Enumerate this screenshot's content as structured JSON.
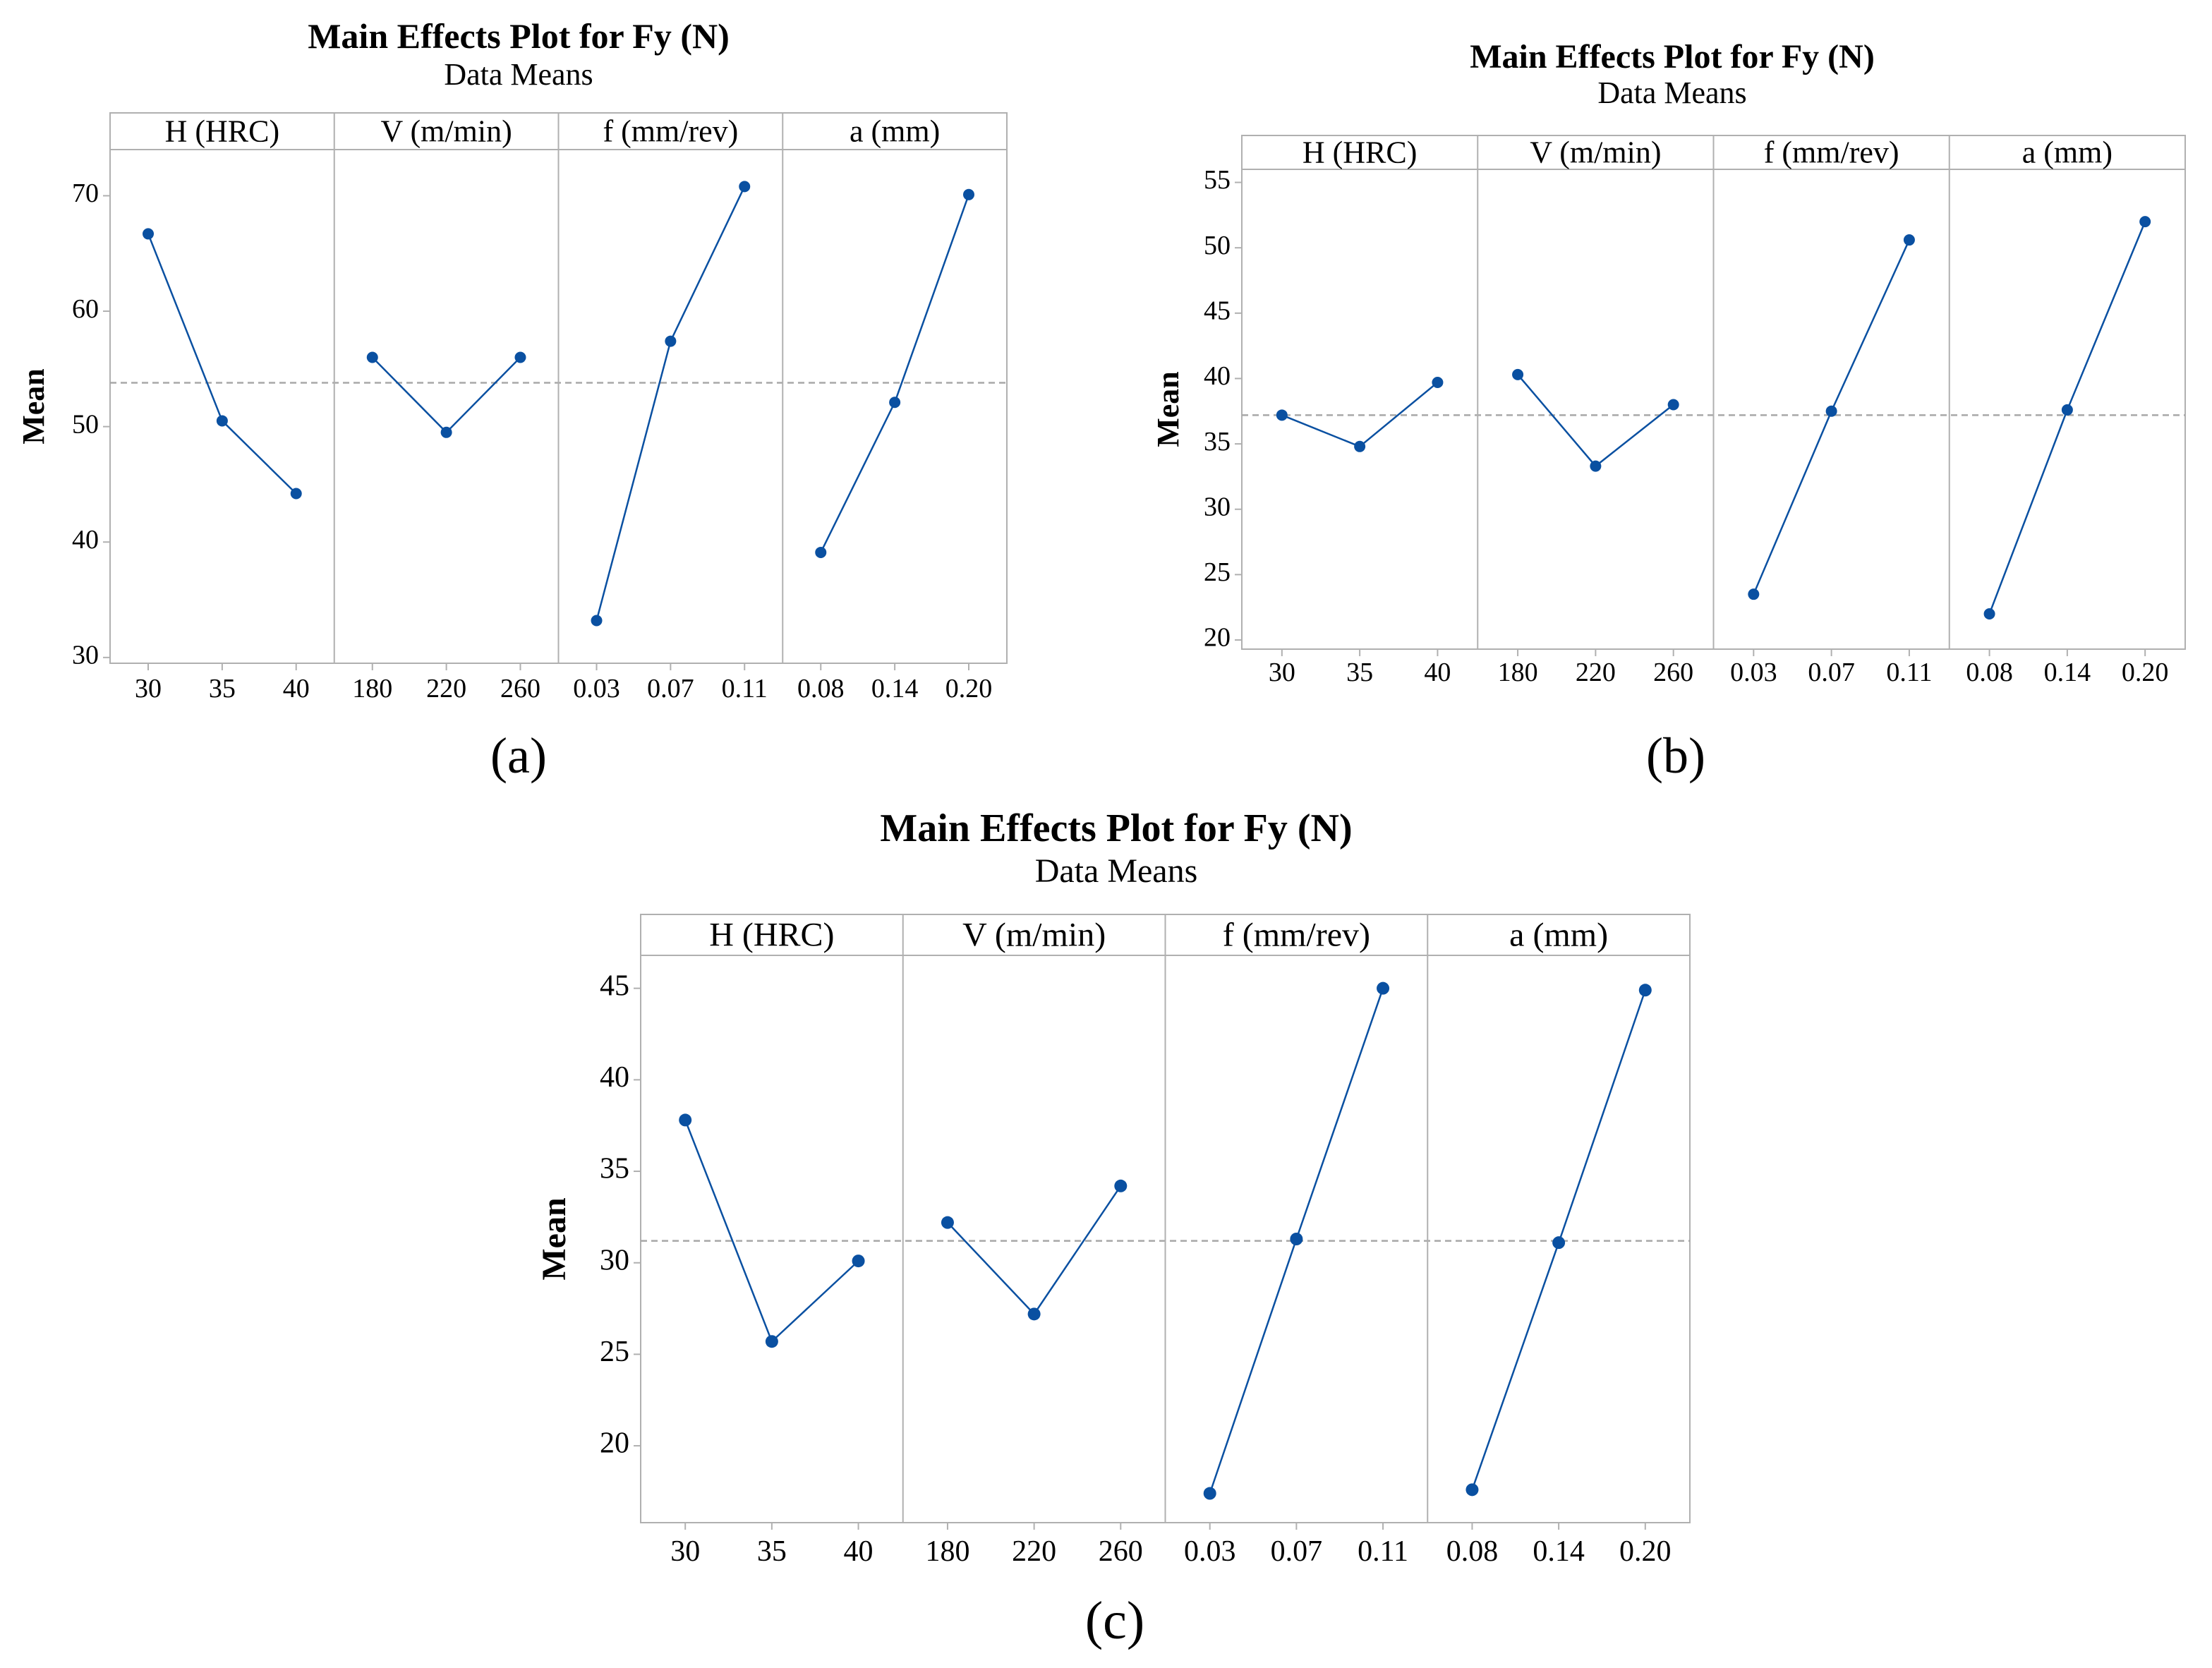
{
  "colors": {
    "series": "#0a50a1",
    "frame": "#b0b0b0",
    "mean_line": "#a8a8a8"
  },
  "chart_data": [
    {
      "id": "a",
      "type": "line",
      "panel_label": "(a)",
      "title": "Main Effects Plot for Fy (N)",
      "subtitle": "Data Means",
      "ylabel": "Mean",
      "ylim": [
        29.5,
        74.0
      ],
      "yticks": [
        30,
        40,
        50,
        60,
        70
      ],
      "grand_mean": 53.8,
      "factors": [
        {
          "name": "H (HRC)",
          "levels": [
            "30",
            "35",
            "40"
          ],
          "values": [
            66.7,
            50.5,
            44.2
          ]
        },
        {
          "name": "V (m/min)",
          "levels": [
            "180",
            "220",
            "260"
          ],
          "values": [
            56.0,
            49.5,
            56.0
          ]
        },
        {
          "name": "f (mm/rev)",
          "levels": [
            "0.03",
            "0.07",
            "0.11"
          ],
          "values": [
            33.2,
            57.4,
            70.8
          ]
        },
        {
          "name": "a (mm)",
          "levels": [
            "0.08",
            "0.14",
            "0.20"
          ],
          "values": [
            39.1,
            52.1,
            70.1
          ]
        }
      ]
    },
    {
      "id": "b",
      "type": "line",
      "panel_label": "(b)",
      "title": "Main Effects Plot for Fy (N)",
      "subtitle": "Data Means",
      "ylabel": "Mean",
      "ylim": [
        19.3,
        56.0
      ],
      "yticks": [
        20,
        25,
        30,
        35,
        40,
        45,
        50,
        55
      ],
      "grand_mean": 37.2,
      "factors": [
        {
          "name": "H (HRC)",
          "levels": [
            "30",
            "35",
            "40"
          ],
          "values": [
            37.2,
            34.8,
            39.7
          ]
        },
        {
          "name": "V (m/min)",
          "levels": [
            "180",
            "220",
            "260"
          ],
          "values": [
            40.3,
            33.3,
            38.0
          ]
        },
        {
          "name": "f (mm/rev)",
          "levels": [
            "0.03",
            "0.07",
            "0.11"
          ],
          "values": [
            23.5,
            37.5,
            50.6
          ]
        },
        {
          "name": "a (mm)",
          "levels": [
            "0.08",
            "0.14",
            "0.20"
          ],
          "values": [
            22.0,
            37.6,
            52.0
          ]
        }
      ]
    },
    {
      "id": "c",
      "type": "line",
      "panel_label": "(c)",
      "title": "Main Effects Plot for Fy (N)",
      "subtitle": "Data Means",
      "ylabel": "Mean",
      "ylim": [
        15.8,
        46.8
      ],
      "yticks": [
        20,
        25,
        30,
        35,
        40,
        45
      ],
      "grand_mean": 31.2,
      "factors": [
        {
          "name": "H (HRC)",
          "levels": [
            "30",
            "35",
            "40"
          ],
          "values": [
            37.8,
            25.7,
            30.1
          ]
        },
        {
          "name": "V (m/min)",
          "levels": [
            "180",
            "220",
            "260"
          ],
          "values": [
            32.2,
            27.2,
            34.2
          ]
        },
        {
          "name": "f (mm/rev)",
          "levels": [
            "0.03",
            "0.07",
            "0.11"
          ],
          "values": [
            17.4,
            31.3,
            45.0
          ]
        },
        {
          "name": "a (mm)",
          "levels": [
            "0.08",
            "0.14",
            "0.20"
          ],
          "values": [
            17.6,
            31.1,
            44.9
          ]
        }
      ]
    }
  ]
}
